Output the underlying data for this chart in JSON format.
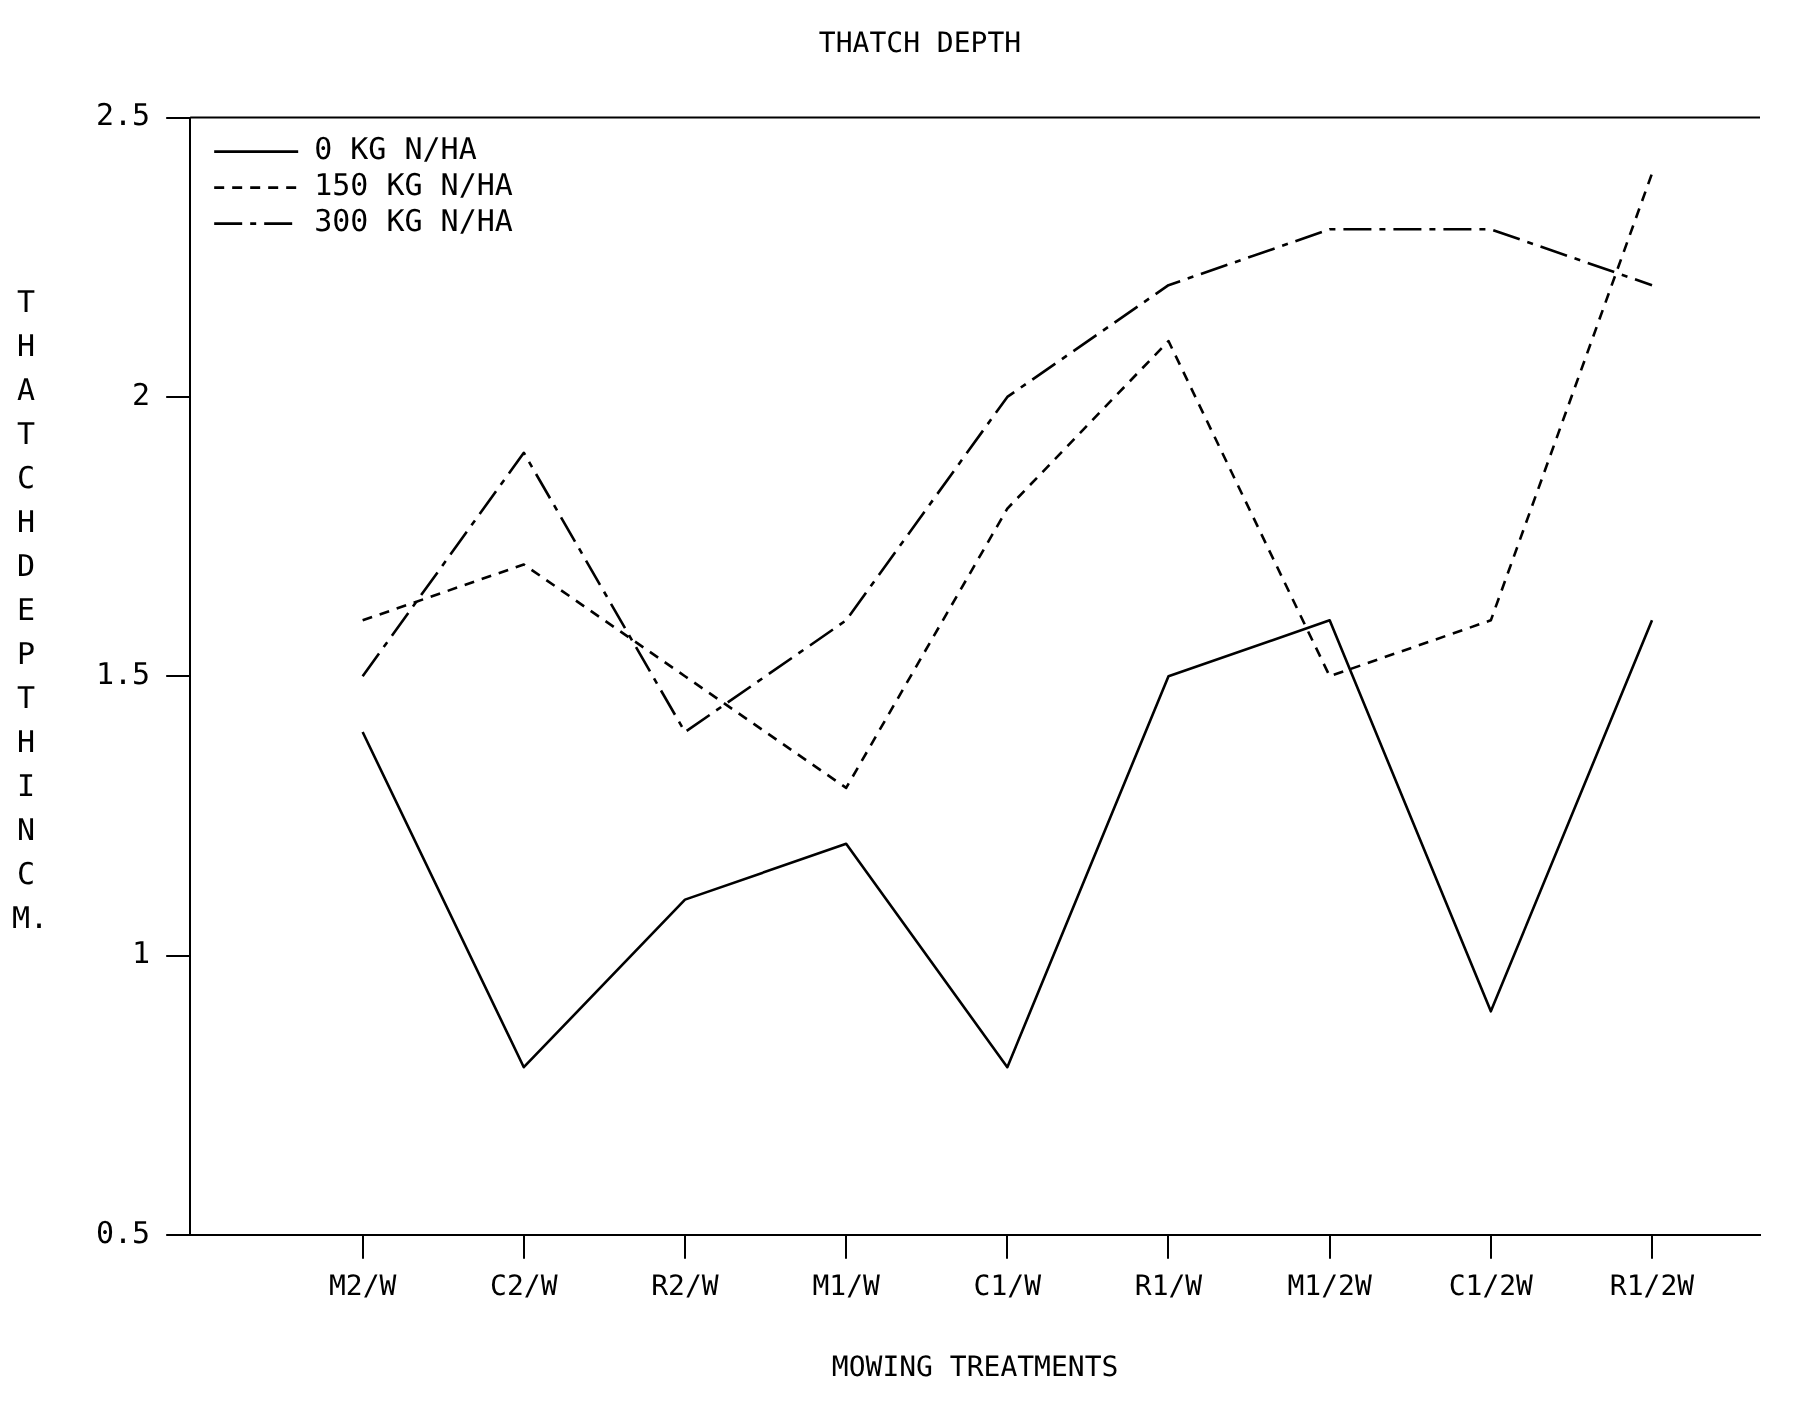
{
  "chart_data": {
    "type": "line",
    "title": "THATCH DEPTH",
    "xlabel": "MOWING TREATMENTS",
    "ylabel": "THATCH DEPTH IN CM.",
    "categories": [
      "M2/W",
      "C2/W",
      "R2/W",
      "M1/W",
      "C1/W",
      "R1/W",
      "M1/2W",
      "C1/2W",
      "R1/2W"
    ],
    "series": [
      {
        "name": "0 KG N/HA",
        "color": "#000000",
        "line_style": "solid",
        "values": [
          1.4,
          0.8,
          1.1,
          1.2,
          0.8,
          1.5,
          1.6,
          0.9,
          1.6
        ]
      },
      {
        "name": "150 KG N/HA",
        "color": "#000000",
        "line_style": "dotted",
        "values": [
          1.6,
          1.7,
          1.5,
          1.3,
          1.8,
          2.1,
          1.5,
          1.6,
          2.4
        ]
      },
      {
        "name": "300 KG N/HA",
        "color": "#000000",
        "line_style": "dashed",
        "values": [
          1.5,
          1.9,
          1.4,
          1.6,
          2.0,
          2.2,
          2.3,
          2.3,
          2.2
        ]
      }
    ],
    "ylim": [
      0.5,
      2.5
    ],
    "yticks": [
      0.5,
      1,
      1.5,
      2,
      2.5
    ],
    "grid": false,
    "legend": "top left",
    "marker": "none"
  }
}
